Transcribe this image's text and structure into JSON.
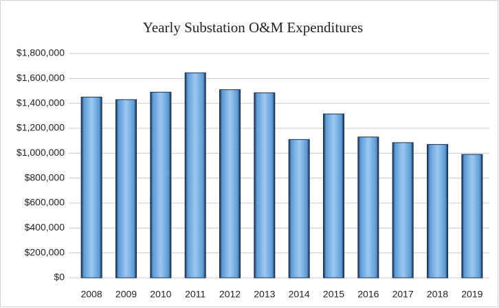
{
  "chart_data": {
    "type": "bar",
    "title": "Yearly  Substation O&M Expenditures",
    "categories": [
      "2008",
      "2009",
      "2010",
      "2011",
      "2012",
      "2013",
      "2014",
      "2015",
      "2016",
      "2017",
      "2018",
      "2019"
    ],
    "values": [
      1450000,
      1430000,
      1490000,
      1645000,
      1510000,
      1485000,
      1110000,
      1315000,
      1130000,
      1085000,
      1070000,
      990000
    ],
    "color": "#5b9bd5",
    "ylim": [
      0,
      1800000
    ],
    "yticks": [
      {
        "value": 0,
        "label": "$0"
      },
      {
        "value": 200000,
        "label": "$200,000"
      },
      {
        "value": 400000,
        "label": "$400,000"
      },
      {
        "value": 600000,
        "label": "$600,000"
      },
      {
        "value": 800000,
        "label": "$800,000"
      },
      {
        "value": 1000000,
        "label": "$1,000,000"
      },
      {
        "value": 1200000,
        "label": "$1,200,000"
      },
      {
        "value": 1400000,
        "label": "$1,400,000"
      },
      {
        "value": 1600000,
        "label": "$1,600,000"
      },
      {
        "value": 1800000,
        "label": "$1,800,000"
      }
    ],
    "grid": true
  }
}
